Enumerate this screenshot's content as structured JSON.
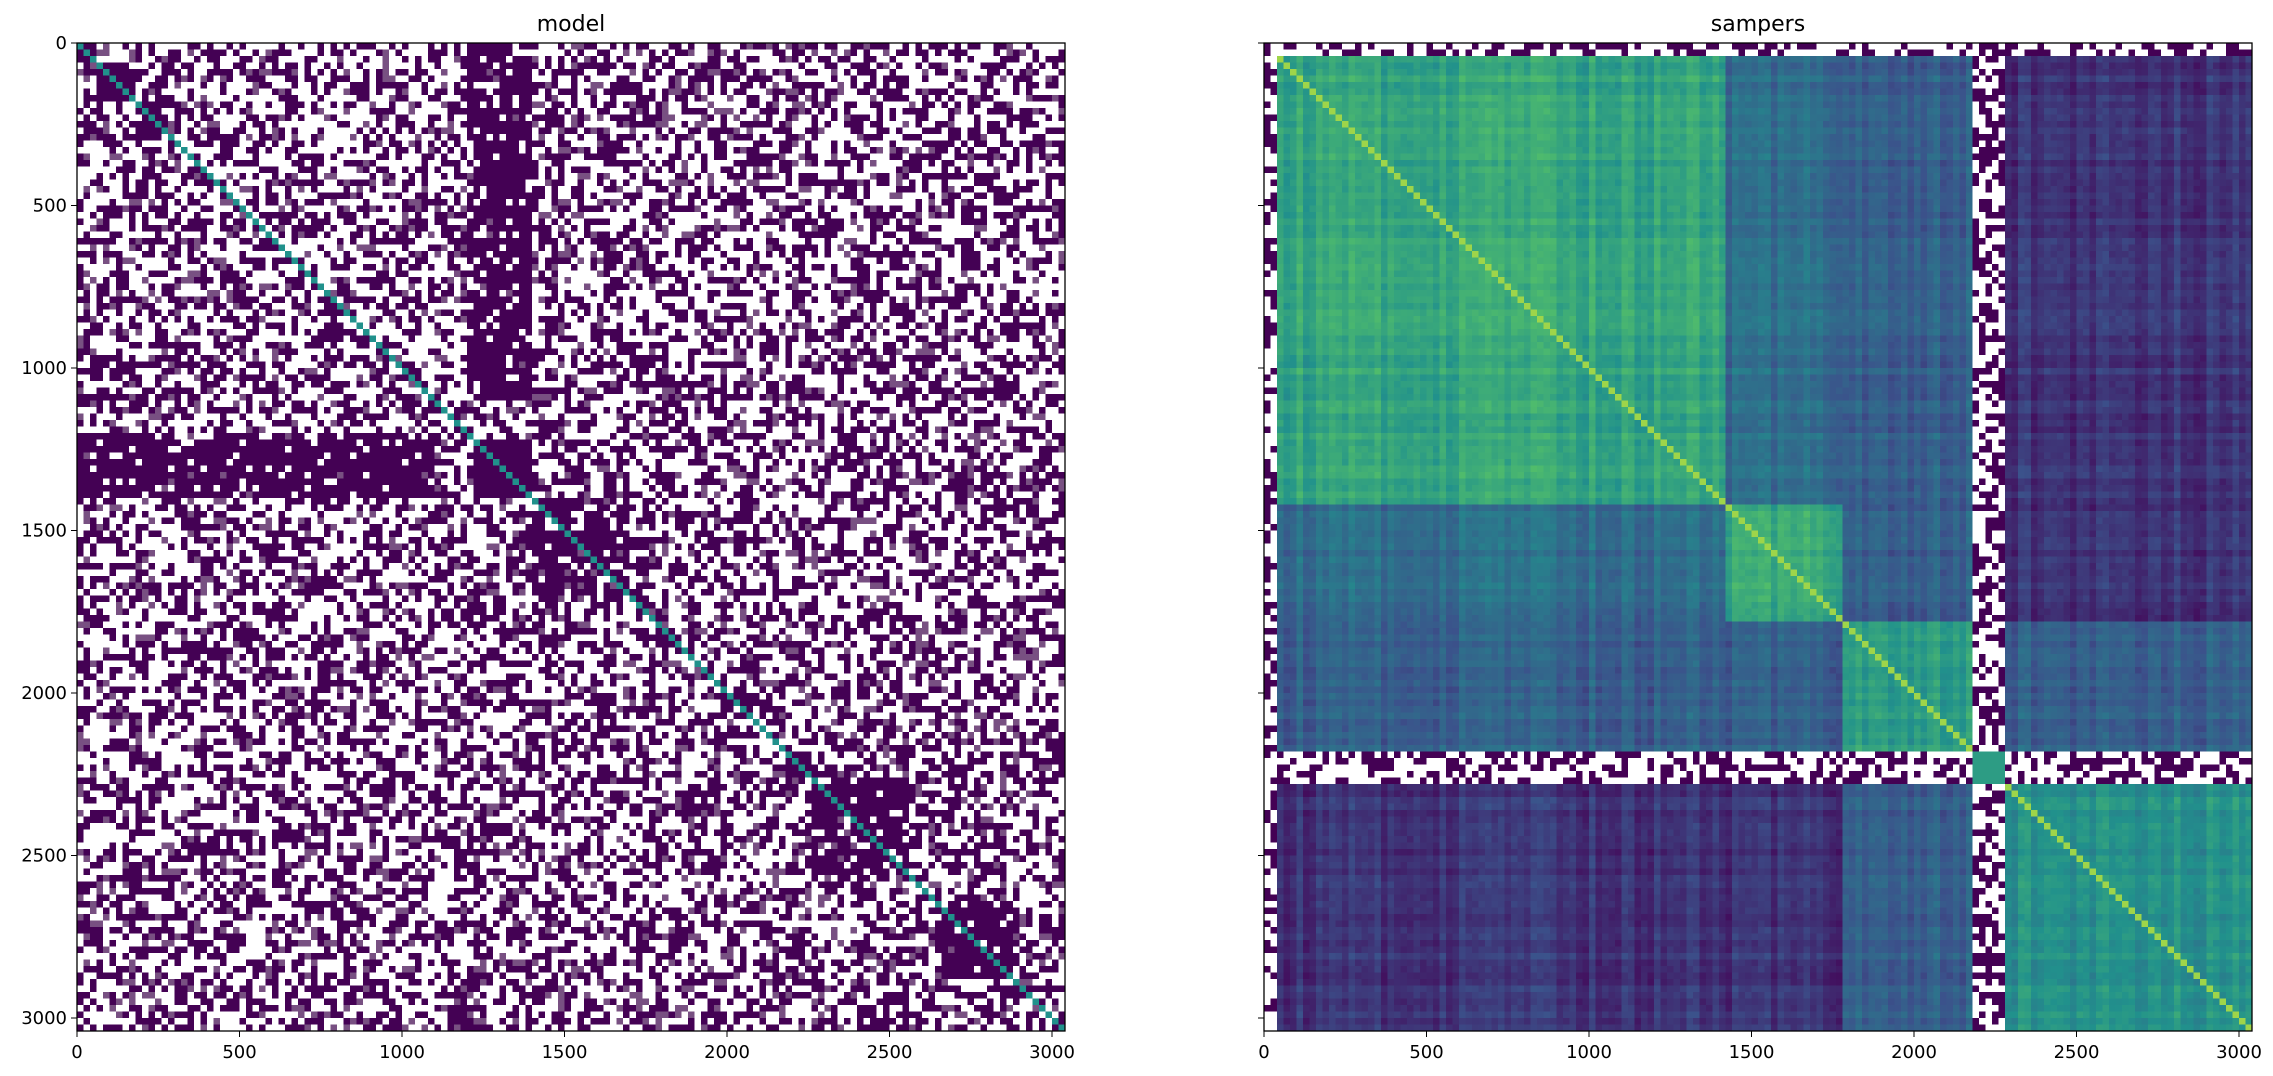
{
  "chart_data": [
    {
      "type": "heatmap",
      "title": "model",
      "xlabel": "",
      "ylabel": "",
      "xlim": [
        0,
        3040
      ],
      "ylim": [
        3040,
        0
      ],
      "x_ticks": [
        "0",
        "500",
        "1000",
        "1500",
        "2000",
        "2500",
        "3000"
      ],
      "y_ticks": [
        "0",
        "500",
        "1000",
        "1500",
        "2000",
        "2500",
        "3000"
      ],
      "colormap": "viridis",
      "background": "sparse noise (dark purple / white speckle)",
      "blocks": [
        {
          "from": 0,
          "to": 60,
          "value": 0.95
        },
        {
          "from": 60,
          "to": 180,
          "value": 0.95
        },
        {
          "from": 180,
          "to": 280,
          "value": 0.9
        },
        {
          "from": 1180,
          "to": 1230,
          "value": 0.95
        },
        {
          "from": 1230,
          "to": 1410,
          "value": 1.0
        },
        {
          "from": 1410,
          "to": 1700,
          "value": 0.8
        },
        {
          "from": 1780,
          "to": 1860,
          "value": 0.85
        },
        {
          "from": 1990,
          "to": 2080,
          "value": 0.9
        },
        {
          "from": 2180,
          "to": 2260,
          "value": 0.85
        },
        {
          "from": 2270,
          "to": 2560,
          "value": 0.85
        },
        {
          "from": 2650,
          "to": 2880,
          "value": 0.9
        }
      ],
      "cross_blocks": [
        {
          "rows": [
            1200,
            1400
          ],
          "cols": [
            30,
            290
          ],
          "value": 0.85
        },
        {
          "rows": [
            1200,
            1400
          ],
          "cols": [
            420,
            560
          ],
          "value": 0.75
        },
        {
          "rows": [
            1200,
            1400
          ],
          "cols": [
            820,
            1080
          ],
          "value": 0.8
        },
        {
          "rows": [
            0,
            1100
          ],
          "cols": [
            1230,
            1400
          ],
          "value": 0.85
        }
      ]
    },
    {
      "type": "heatmap",
      "title": "sampers",
      "xlabel": "",
      "ylabel": "",
      "xlim": [
        0,
        3040
      ],
      "ylim": [
        3040,
        0
      ],
      "x_ticks": [
        "0",
        "500",
        "1000",
        "1500",
        "2000",
        "2500",
        "3000"
      ],
      "y_ticks": [],
      "colormap": "viridis",
      "noise_rows": [
        [
          0,
          40
        ],
        [
          2185,
          2285
        ]
      ],
      "noise_cols": [
        [
          0,
          40
        ],
        [
          2185,
          2285
        ]
      ],
      "groups": [
        {
          "from": 40,
          "to": 1420,
          "within": 0.58
        },
        {
          "from": 1420,
          "to": 1780,
          "within": 0.6
        },
        {
          "from": 1780,
          "to": 2185,
          "within": 0.55
        },
        {
          "from": 2185,
          "to": 2285,
          "within": 0.55
        },
        {
          "from": 2285,
          "to": 3040,
          "within": 0.5
        }
      ],
      "between": [
        {
          "a": 0,
          "b": 1,
          "value": 0.35
        },
        {
          "a": 0,
          "b": 2,
          "value": 0.3
        },
        {
          "a": 0,
          "b": 4,
          "value": 0.15
        },
        {
          "a": 1,
          "b": 2,
          "value": 0.3
        },
        {
          "a": 1,
          "b": 4,
          "value": 0.15
        },
        {
          "a": 2,
          "b": 4,
          "value": 0.3
        }
      ],
      "diagonal_value": 0.85
    }
  ]
}
